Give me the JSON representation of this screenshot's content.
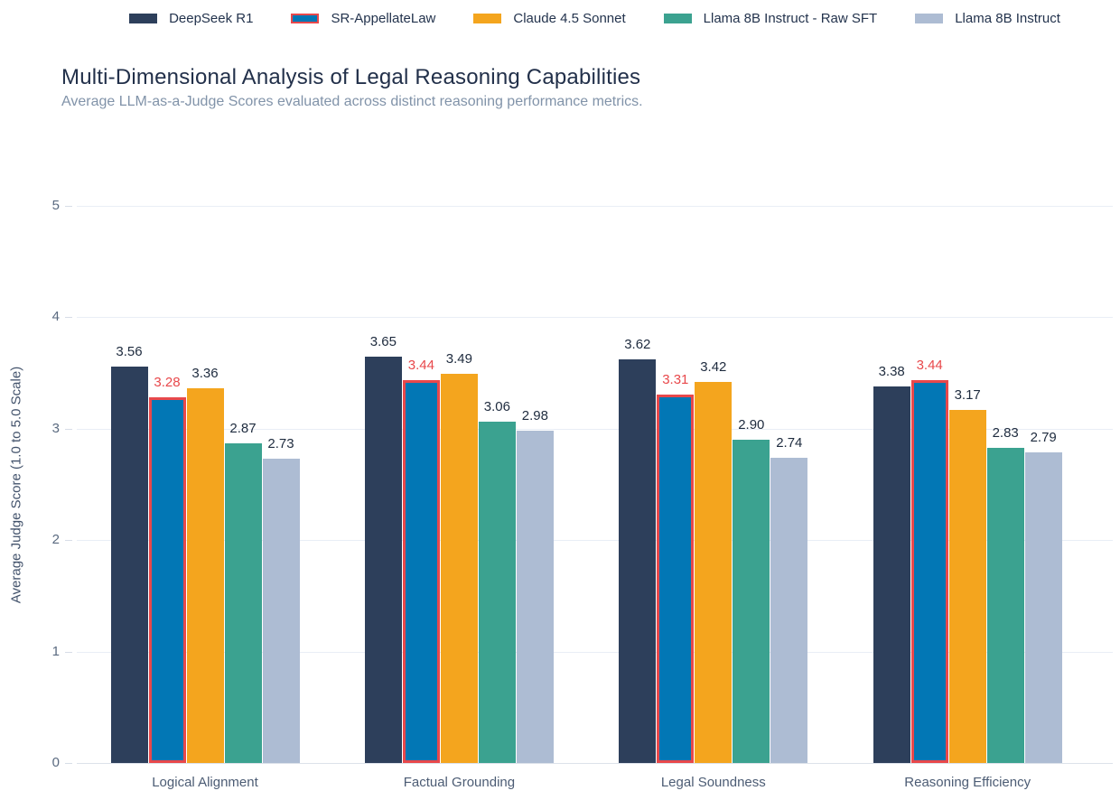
{
  "header": {
    "title": "Multi-Dimensional Analysis of Legal Reasoning Capabilities",
    "subtitle": "Average LLM-as-a-Judge Scores evaluated across distinct reasoning performance metrics."
  },
  "colors": {
    "highlight_red": "#e8484b",
    "grid": "#e9eef6",
    "title_text": "#22304a",
    "subtitle_text": "#8193a9",
    "axis_text": "#5a6a80"
  },
  "chart_data": {
    "type": "bar",
    "title": "Multi-Dimensional Analysis of Legal Reasoning Capabilities",
    "subtitle": "Average LLM-as-a-Judge Scores evaluated across distinct reasoning performance metrics.",
    "xlabel": "",
    "ylabel": "Average Judge Score (1.0 to 5.0 Scale)",
    "ylim": [
      0,
      5
    ],
    "yticks": [
      0,
      1,
      2,
      3,
      4,
      5
    ],
    "grid": true,
    "legend_position": "top",
    "value_labels_shown": true,
    "categories": [
      "Logical Alignment",
      "Factual Grounding",
      "Legal Soundness",
      "Reasoning Efficiency"
    ],
    "series": [
      {
        "name": "DeepSeek R1",
        "color": "#2d3f5b",
        "values": [
          3.56,
          3.65,
          3.62,
          3.38
        ],
        "highlighted": false
      },
      {
        "name": "SR-AppellateLaw",
        "color": "#0277b5",
        "values": [
          3.28,
          3.44,
          3.31,
          3.44
        ],
        "highlighted": true,
        "highlight_border_color": "#e8484b",
        "label_color": "#e8484b"
      },
      {
        "name": "Claude 4.5 Sonnet",
        "color": "#f4a51e",
        "values": [
          3.36,
          3.49,
          3.42,
          3.17
        ],
        "highlighted": false
      },
      {
        "name": "Llama 8B Instruct - Raw SFT",
        "color": "#3ba290",
        "values": [
          2.87,
          3.06,
          2.9,
          2.83
        ],
        "highlighted": false
      },
      {
        "name": "Llama 8B Instruct",
        "color": "#adbcd3",
        "values": [
          2.73,
          2.98,
          2.74,
          2.79
        ],
        "highlighted": false
      }
    ]
  }
}
